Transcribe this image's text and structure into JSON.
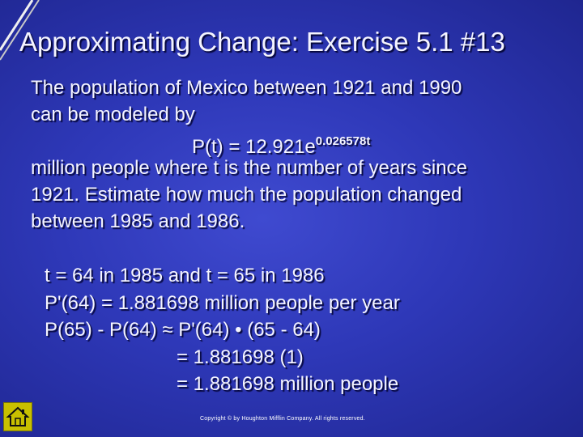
{
  "slide": {
    "title": "Approximating Change: Exercise 5.1 #13",
    "problem_lines": [
      "The  population of Mexico between 1921 and 1990",
      "can be modeled by",
      "million people where t is the number of years since",
      "1921.  Estimate how much the population changed",
      "between 1985 and 1986."
    ],
    "formula": {
      "base": "P(t) = 12.921e",
      "exponent": "0.026578t"
    },
    "solution_lines": [
      "t = 64 in 1985 and t = 65 in 1986",
      "P'(64) = 1.881698 million people per year",
      "P(65) - P(64) ≈ P'(64) • (65 - 64)",
      "= 1.881698 (1)",
      "= 1.881698 million people"
    ],
    "copyright": "Copyright © by Houghton Mifflin Company.  All rights reserved."
  },
  "icons": {
    "home_button": "home-icon"
  },
  "colors": {
    "background": "#2e38b8",
    "text": "#f4f4ff",
    "home_button": "#c8c000"
  }
}
